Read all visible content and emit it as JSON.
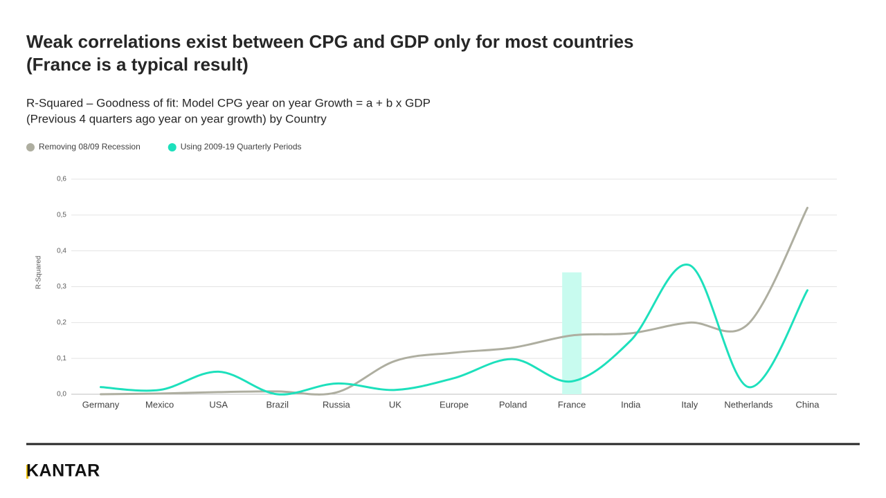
{
  "chart_data": {
    "type": "line",
    "title": [
      "Weak correlations exist between CPG and GDP only for most countries",
      "(France is a typical result)"
    ],
    "subtitle": [
      "R-Squared – Goodness of fit: Model CPG year on year Growth  = a + b x GDP",
      "(Previous 4 quarters ago year on year growth) by Country"
    ],
    "y_label": "R-Squared",
    "categories": [
      "Germany",
      "Mexico",
      "USA",
      "Brazil",
      "Russia",
      "UK",
      "Europe",
      "Poland",
      "France",
      "India",
      "Italy",
      "Netherlands",
      "China"
    ],
    "series": [
      {
        "name": "Removing  08/09 Recession",
        "color": "#aeaea0",
        "values": [
          0.0,
          0.002,
          0.006,
          0.008,
          0.005,
          0.093,
          0.116,
          0.13,
          0.164,
          0.17,
          0.2,
          0.197,
          0.52
        ]
      },
      {
        "name": "Using 2009-19 Quarterly Periods",
        "color": "#1de0bc",
        "values": [
          0.02,
          0.012,
          0.063,
          0.0,
          0.03,
          0.012,
          0.045,
          0.098,
          0.036,
          0.15,
          0.36,
          0.02,
          0.29
        ]
      }
    ],
    "highlight": {
      "category": "France",
      "value": 0.34,
      "color": "#c8fbef"
    },
    "ylim": [
      0,
      0.6
    ],
    "yticks": [
      {
        "value": 0,
        "label": "0,0"
      },
      {
        "value": 0.1,
        "label": "0,1"
      },
      {
        "value": 0.2,
        "label": "0,2"
      },
      {
        "value": 0.3,
        "label": "0,3"
      },
      {
        "value": 0.4,
        "label": "0,4"
      },
      {
        "value": 0.5,
        "label": "0,5"
      },
      {
        "value": 0.6,
        "label": "0,6"
      }
    ],
    "grid": true
  },
  "logo": "KANTAR"
}
